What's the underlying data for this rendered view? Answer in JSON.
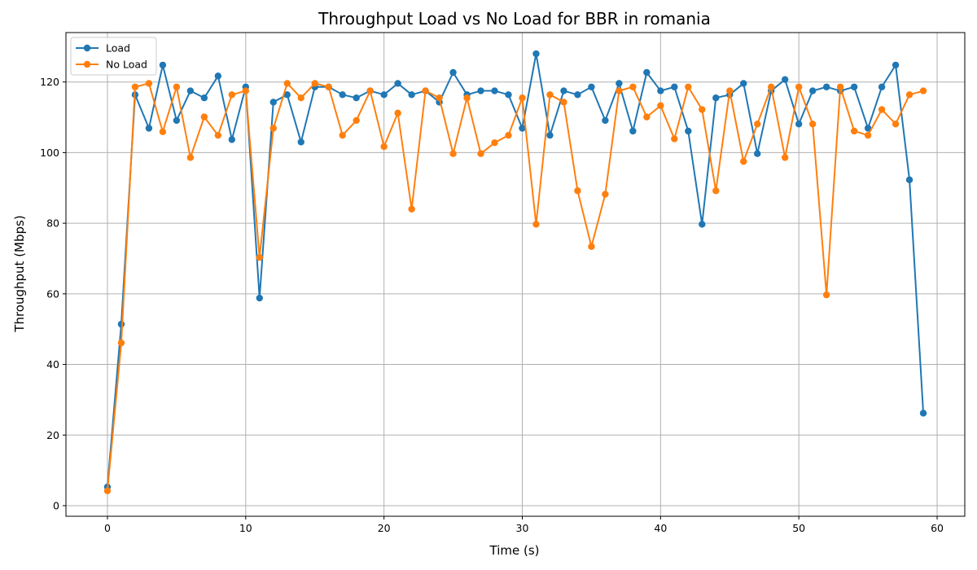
{
  "chart_data": {
    "type": "line",
    "title": "Throughput Load vs No Load for BBR in romania",
    "xlabel": "Time (s)",
    "ylabel": "Throughput (Mbps)",
    "xlim": [
      -3,
      62
    ],
    "ylim": [
      -3,
      134
    ],
    "xticks": [
      0,
      10,
      20,
      30,
      40,
      50,
      60
    ],
    "yticks": [
      0,
      20,
      40,
      60,
      80,
      100,
      120
    ],
    "grid": true,
    "legend_position": "top-left",
    "x": [
      0,
      1,
      2,
      3,
      4,
      5,
      6,
      7,
      8,
      9,
      10,
      11,
      12,
      13,
      14,
      15,
      16,
      17,
      18,
      19,
      20,
      21,
      22,
      23,
      24,
      25,
      26,
      27,
      28,
      29,
      30,
      31,
      32,
      33,
      34,
      35,
      36,
      37,
      38,
      39,
      40,
      41,
      42,
      43,
      44,
      45,
      46,
      47,
      48,
      49,
      50,
      51,
      52,
      53,
      54,
      55,
      56,
      57,
      58,
      59
    ],
    "series": [
      {
        "name": "Load",
        "color": "#1f77b4",
        "values": [
          5.3,
          51.4,
          116.4,
          106.9,
          124.8,
          109.1,
          117.5,
          115.5,
          121.7,
          103.7,
          118.6,
          58.8,
          114.3,
          116.4,
          103.0,
          118.6,
          118.6,
          116.4,
          115.5,
          117.5,
          116.4,
          119.6,
          116.4,
          117.5,
          114.3,
          122.7,
          116.4,
          117.5,
          117.5,
          116.4,
          106.9,
          128.0,
          104.9,
          117.5,
          116.4,
          118.6,
          109.1,
          119.6,
          106.1,
          122.7,
          117.5,
          118.6,
          106.1,
          79.7,
          115.5,
          116.4,
          119.6,
          99.7,
          117.5,
          120.7,
          108.1,
          117.5,
          118.6,
          117.5,
          118.6,
          106.9,
          118.6,
          124.8,
          92.3,
          26.2
        ]
      },
      {
        "name": "No Load",
        "color": "#ff7f0e",
        "values": [
          4.2,
          46.1,
          118.6,
          119.6,
          105.9,
          118.6,
          98.6,
          110.1,
          104.9,
          116.4,
          117.5,
          70.3,
          106.9,
          119.6,
          115.5,
          119.6,
          118.6,
          104.9,
          109.1,
          117.5,
          101.7,
          111.2,
          84.0,
          117.5,
          115.5,
          99.7,
          115.5,
          99.7,
          102.8,
          104.9,
          115.5,
          79.7,
          116.4,
          114.3,
          89.2,
          73.4,
          88.2,
          117.5,
          118.6,
          110.1,
          113.3,
          103.9,
          118.6,
          112.2,
          89.2,
          117.5,
          97.5,
          108.1,
          118.6,
          98.6,
          118.6,
          108.1,
          59.7,
          118.6,
          106.1,
          104.9,
          112.2,
          108.1,
          116.4,
          117.5
        ]
      }
    ]
  }
}
